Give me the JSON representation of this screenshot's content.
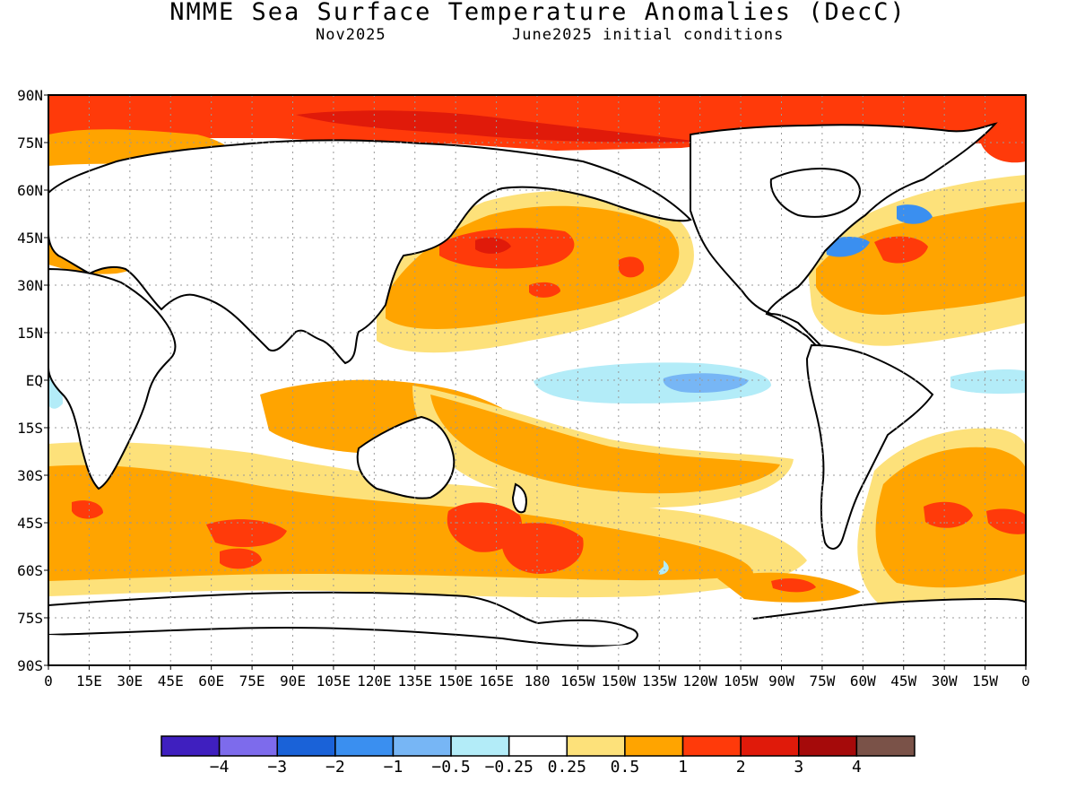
{
  "header": {
    "title": "NMME Sea Surface Temperature Anomalies (DecC)",
    "valid_month": "Nov2025",
    "init_conditions": "June2025 initial conditions"
  },
  "map": {
    "lat_labels": [
      "90N",
      "75N",
      "60N",
      "45N",
      "30N",
      "15N",
      "EQ",
      "15S",
      "30S",
      "45S",
      "60S",
      "75S",
      "90S"
    ],
    "lon_labels": [
      "0",
      "15E",
      "30E",
      "45E",
      "60E",
      "75E",
      "90E",
      "105E",
      "120E",
      "135E",
      "150E",
      "165E",
      "180",
      "165W",
      "150W",
      "135W",
      "120W",
      "105W",
      "90W",
      "75W",
      "60W",
      "45W",
      "30W",
      "15W",
      "0"
    ],
    "gridlines": true,
    "features": [
      {
        "name": "arctic-warm-band",
        "level": ">1"
      },
      {
        "name": "north-pacific-warm-anomaly",
        "level": "0.5-2"
      },
      {
        "name": "equatorial-pacific-cool-anomaly",
        "level": "-1 to -0.25"
      },
      {
        "name": "gulf-stream-cool-anomaly",
        "level": "-1 to -0.5"
      },
      {
        "name": "southern-ocean-warm-band",
        "level": "0.5-2"
      },
      {
        "name": "south-atlantic-warm-anomaly",
        "level": "0.5-2"
      }
    ]
  },
  "colorbar": {
    "colors": [
      "#3f1fbf",
      "#7d6bec",
      "#1a62d8",
      "#3a8ff0",
      "#77b6f5",
      "#b3ecf8",
      "#ffffff",
      "#fde17a",
      "#ffa400",
      "#ff3a0a",
      "#e01a0a",
      "#a50a0a",
      "#7a5248"
    ],
    "labels": [
      "-4",
      "-3",
      "-2",
      "-1",
      "-0.5",
      "-0.25",
      "0.25",
      "0.5",
      "1",
      "2",
      "3",
      "4"
    ]
  }
}
